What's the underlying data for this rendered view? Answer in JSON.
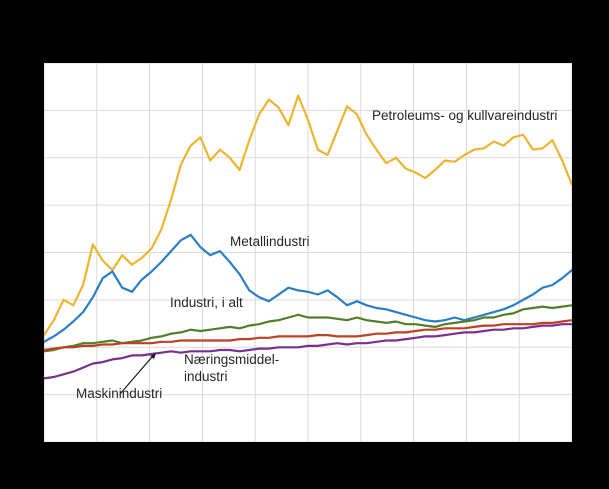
{
  "figure": {
    "background": "#000000",
    "plot_background": "#ffffff",
    "grid_color": "#d9d9d9",
    "annotation_color": "#262626"
  },
  "annotations": {
    "petroleum": "Petroleums- og kullvareindustri",
    "metall": "Metallindustri",
    "industri": "Industri, i alt",
    "naeringsmiddel_line1": "Næringsmiddel-",
    "naeringsmiddel_line2": "industri",
    "maskin": "Maskinindustri"
  },
  "chart_data": {
    "type": "line",
    "title": "",
    "xlabel": "",
    "ylabel": "",
    "axis_tick_labels_visible": false,
    "legend_position": "inline-annotations",
    "grid": {
      "vertical_divisions": 10,
      "horizontal_divisions": 8
    },
    "ylim": [
      40,
      320
    ],
    "x_point_count": 55,
    "series": [
      {
        "id": "petroleums-og-kullvareindustri",
        "name": "Petroleums- og kullvareindustri",
        "color": "#eeb430",
        "values": [
          119,
          130,
          145,
          141,
          156,
          186,
          174,
          167,
          178,
          171,
          176,
          183,
          197,
          219,
          245,
          259,
          265,
          248,
          256,
          250,
          241,
          263,
          282,
          293,
          287,
          274,
          296,
          278,
          256,
          252,
          270,
          288,
          282,
          267,
          256,
          246,
          250,
          242,
          239,
          235,
          241,
          248,
          247,
          252,
          256,
          257,
          262,
          259,
          265,
          267,
          256,
          257,
          263,
          248,
          230
        ]
      },
      {
        "id": "metallindustri",
        "name": "Metallindustri",
        "color": "#2a7fc4",
        "values": [
          114,
          118,
          123,
          129,
          136,
          147,
          161,
          166,
          154,
          151,
          160,
          166,
          173,
          181,
          189,
          193,
          184,
          178,
          181,
          173,
          164,
          152,
          147,
          144,
          149,
          154,
          152,
          151,
          149,
          152,
          147,
          141,
          144,
          141,
          139,
          138,
          136,
          134,
          132,
          130,
          129,
          130,
          132,
          130,
          132,
          134,
          136,
          138,
          141,
          145,
          149,
          154,
          156,
          161,
          167
        ]
      },
      {
        "id": "industri-i-alt",
        "name": "Industri, i alt",
        "color": "#527d2a",
        "values": [
          107,
          108,
          110,
          111,
          113,
          113,
          114,
          115,
          113,
          114,
          115,
          117,
          118,
          120,
          121,
          123,
          122,
          123,
          124,
          125,
          124,
          126,
          127,
          129,
          130,
          132,
          134,
          132,
          132,
          132,
          131,
          130,
          132,
          130,
          129,
          128,
          129,
          127,
          127,
          126,
          125,
          127,
          128,
          129,
          130,
          132,
          132,
          134,
          135,
          138,
          139,
          140,
          139,
          140,
          141
        ]
      },
      {
        "id": "naeringsmiddelindustri",
        "name": "Næringsmiddelindustri",
        "color": "#bc4224",
        "values": [
          108,
          109,
          110,
          110,
          111,
          111,
          112,
          112,
          113,
          113,
          113,
          113,
          114,
          114,
          115,
          115,
          115,
          115,
          115,
          115,
          116,
          116,
          117,
          117,
          118,
          118,
          118,
          118,
          119,
          119,
          118,
          118,
          118,
          119,
          120,
          120,
          121,
          121,
          122,
          123,
          123,
          124,
          124,
          124,
          125,
          126,
          126,
          127,
          127,
          127,
          127,
          128,
          128,
          129,
          130
        ]
      },
      {
        "id": "maskinindustri",
        "name": "Maskinindustri",
        "color": "#7b2f8e",
        "values": [
          87,
          88,
          90,
          92,
          95,
          98,
          99,
          101,
          102,
          104,
          104,
          105,
          106,
          107,
          106,
          107,
          107,
          107,
          108,
          108,
          107,
          108,
          109,
          109,
          110,
          110,
          110,
          111,
          111,
          112,
          113,
          112,
          113,
          113,
          114,
          115,
          115,
          116,
          117,
          118,
          118,
          119,
          120,
          121,
          121,
          122,
          123,
          123,
          124,
          124,
          125,
          126,
          126,
          127,
          127
        ]
      }
    ]
  }
}
